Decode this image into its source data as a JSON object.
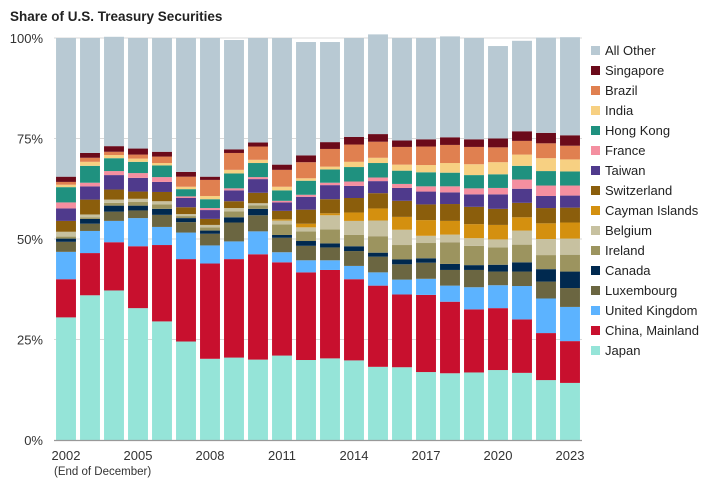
{
  "chart_data": {
    "type": "bar",
    "stacked": true,
    "title": "Share of U.S. Treasury Securities",
    "xlabel": "",
    "xlabel_note": "(End of December)",
    "ylabel": "",
    "ylim": [
      0,
      100
    ],
    "ytick_labels": [
      "0%",
      "25%",
      "50%",
      "75%",
      "100%"
    ],
    "yticks": [
      0,
      25,
      50,
      75,
      100
    ],
    "grid": true,
    "legend_position": "right",
    "categories": [
      "2002",
      "2003",
      "2004",
      "2005",
      "2006",
      "2007",
      "2008",
      "2009",
      "2010",
      "2011",
      "2012",
      "2013",
      "2014",
      "2015",
      "2016",
      "2017",
      "2018",
      "2019",
      "2020",
      "2021",
      "2022",
      "2023"
    ],
    "xtick_labels": [
      "2002",
      "",
      "",
      "2005",
      "",
      "",
      "2008",
      "",
      "",
      "2011",
      "",
      "",
      "2014",
      "",
      "",
      "2017",
      "",
      "",
      "2020",
      "",
      "",
      "2023"
    ],
    "series": [
      {
        "name": "Japan",
        "color": "#95E4D8",
        "values": [
          30.5,
          36.0,
          37.2,
          32.8,
          29.5,
          24.5,
          20.2,
          20.5,
          20.0,
          21.0,
          19.9,
          20.3,
          19.8,
          18.2,
          18.1,
          16.9,
          16.6,
          16.8,
          17.4,
          16.7,
          14.9,
          14.2
        ]
      },
      {
        "name": "China, Mainland",
        "color": "#C8102E",
        "values": [
          9.5,
          10.5,
          12.0,
          15.4,
          19.0,
          20.5,
          23.7,
          24.5,
          26.2,
          23.2,
          21.8,
          22.0,
          20.2,
          20.2,
          18.1,
          19.2,
          17.8,
          15.7,
          15.4,
          13.3,
          11.7,
          10.4
        ]
      },
      {
        "name": "United Kingdom",
        "color": "#5CB3FF",
        "values": [
          6.8,
          5.5,
          5.3,
          7.0,
          4.5,
          6.6,
          4.5,
          4.4,
          5.7,
          2.5,
          3.0,
          2.4,
          3.3,
          3.3,
          3.7,
          4.0,
          4.0,
          5.5,
          5.7,
          8.3,
          8.6,
          8.5
        ]
      },
      {
        "name": "Luxembourg",
        "color": "#6B6641",
        "values": [
          2.5,
          1.8,
          2.3,
          1.9,
          3.0,
          2.6,
          2.9,
          4.7,
          4.0,
          3.6,
          3.6,
          3.2,
          3.7,
          3.9,
          3.8,
          4.0,
          3.9,
          4.3,
          3.4,
          3.6,
          4.2,
          4.7
        ]
      },
      {
        "name": "Canada",
        "color": "#00294F",
        "values": [
          0.8,
          1.2,
          1.5,
          1.2,
          1.5,
          1.0,
          0.8,
          1.3,
          1.6,
          0.7,
          1.2,
          1.0,
          1.2,
          1.0,
          1.2,
          1.1,
          1.5,
          1.2,
          1.7,
          2.3,
          3.1,
          4.1
        ]
      },
      {
        "name": "Ireland",
        "color": "#9C945F",
        "values": [
          0.5,
          0.4,
          0.7,
          0.9,
          1.1,
          0.5,
          0.8,
          1.5,
          0.9,
          2.6,
          2.4,
          3.5,
          2.8,
          4.1,
          3.6,
          3.8,
          5.4,
          4.8,
          4.3,
          4.4,
          3.5,
          4.2
        ]
      },
      {
        "name": "Belgium",
        "color": "#C7C1A0",
        "values": [
          1.2,
          0.7,
          0.8,
          0.8,
          0.8,
          0.5,
          0.6,
          0.8,
          0.5,
          1.0,
          1.0,
          3.5,
          3.5,
          3.9,
          3.8,
          1.8,
          1.9,
          1.9,
          2.0,
          3.5,
          4.0,
          4.0
        ]
      },
      {
        "name": "Cayman Islands",
        "color": "#D4900F",
        "values": [
          0.0,
          0.0,
          0.0,
          0.0,
          0.0,
          0.0,
          0.0,
          0.0,
          0.0,
          0.3,
          0.9,
          0.5,
          2.1,
          3.0,
          3.2,
          3.9,
          3.4,
          3.5,
          3.6,
          3.3,
          3.9,
          4.0
        ]
      },
      {
        "name": "Switzerland",
        "color": "#8B5E0C",
        "values": [
          2.7,
          3.7,
          2.5,
          1.8,
          2.3,
          1.7,
          1.5,
          1.7,
          2.6,
          2.1,
          3.5,
          3.5,
          3.6,
          3.8,
          4.0,
          3.9,
          4.2,
          4.3,
          4.0,
          3.6,
          3.8,
          3.7
        ]
      },
      {
        "name": "Taiwan",
        "color": "#4F3A8C",
        "values": [
          3.1,
          3.3,
          3.6,
          3.4,
          2.5,
          2.3,
          2.2,
          2.7,
          3.4,
          2.1,
          3.2,
          3.5,
          3.0,
          3.0,
          3.2,
          3.2,
          2.9,
          3.1,
          3.6,
          3.5,
          3.0,
          3.0
        ]
      },
      {
        "name": "France",
        "color": "#F48FA0",
        "values": [
          1.5,
          0.9,
          1.0,
          1.2,
          1.2,
          0.4,
          0.5,
          0.5,
          0.5,
          0.4,
          0.5,
          0.6,
          1.1,
          0.9,
          1.0,
          1.3,
          1.5,
          1.5,
          1.6,
          2.3,
          2.6,
          2.5
        ]
      },
      {
        "name": "Hong Kong",
        "color": "#1F917F",
        "values": [
          3.8,
          4.2,
          3.2,
          2.8,
          2.9,
          1.8,
          2.2,
          3.7,
          3.5,
          2.6,
          3.5,
          3.3,
          3.6,
          3.6,
          3.3,
          3.5,
          3.4,
          3.3,
          3.4,
          3.4,
          3.6,
          3.5
        ]
      },
      {
        "name": "India",
        "color": "#F7D082",
        "values": [
          0.6,
          1.0,
          0.8,
          0.8,
          0.6,
          0.6,
          0.8,
          0.9,
          0.8,
          0.9,
          0.6,
          0.7,
          1.3,
          1.3,
          1.5,
          1.8,
          2.4,
          2.7,
          3.0,
          2.8,
          3.2,
          3.0
        ]
      },
      {
        "name": "Brazil",
        "color": "#E08050",
        "values": [
          0.7,
          1.0,
          0.8,
          1.0,
          1.6,
          2.5,
          4.0,
          4.2,
          3.3,
          4.2,
          4.0,
          4.4,
          4.3,
          4.0,
          4.4,
          4.6,
          4.5,
          4.3,
          3.7,
          3.4,
          3.7,
          3.4
        ]
      },
      {
        "name": "Singapore",
        "color": "#6B0A1A",
        "values": [
          1.3,
          1.2,
          1.4,
          1.5,
          1.2,
          1.2,
          0.8,
          0.9,
          1.0,
          1.3,
          1.7,
          1.7,
          1.9,
          1.9,
          1.6,
          1.8,
          1.9,
          1.9,
          2.2,
          2.4,
          2.6,
          2.6
        ]
      },
      {
        "name": "All Other",
        "color": "#B8C9D3",
        "values": [
          34.5,
          28.6,
          27.2,
          27.5,
          28.3,
          33.3,
          34.5,
          27.2,
          26.0,
          31.5,
          28.2,
          24.9,
          24.6,
          24.8,
          25.5,
          25.2,
          25.1,
          25.2,
          23.0,
          22.5,
          23.7,
          24.4
        ]
      }
    ],
    "legend_order": [
      "All Other",
      "Singapore",
      "Brazil",
      "India",
      "Hong Kong",
      "France",
      "Taiwan",
      "Switzerland",
      "Cayman Islands",
      "Belgium",
      "Ireland",
      "Canada",
      "Luxembourg",
      "United Kingdom",
      "China, Mainland",
      "Japan"
    ]
  }
}
